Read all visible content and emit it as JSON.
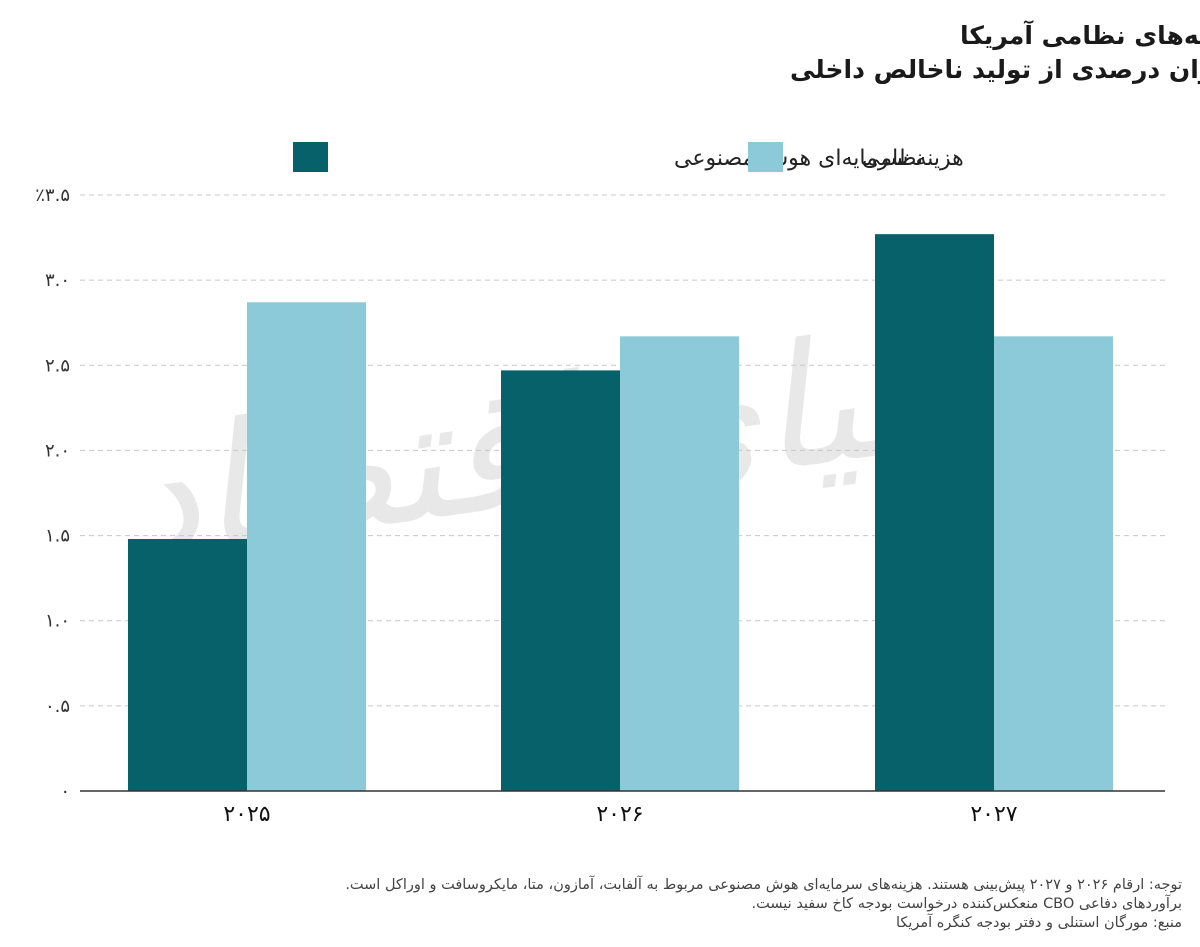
{
  "colors": {
    "ai": "#06616a",
    "military": "#8ccad9",
    "grid": "#c8c8c8",
    "axis": "#333333"
  },
  "chart_data": {
    "type": "bar",
    "title": "هزینه‌های سرمایه‌ای هوش مصنوعی در برابر هزینه‌های نظامی آمریکا",
    "subtitle": "به‌عنوان درصدی از تولید ناخالص داخلی",
    "categories": [
      "۲۰۲۵",
      "۲۰۲۶",
      "۲۰۲۷"
    ],
    "series": [
      {
        "name": "هزینه سرمایه‌ای هوش مصنوعی",
        "color": "#06616a",
        "values": [
          1.48,
          2.47,
          3.27
        ]
      },
      {
        "name": "نظامی",
        "color": "#8ccad9",
        "values": [
          2.87,
          2.67,
          2.67
        ]
      }
    ],
    "ylim": [
      0,
      3.5
    ],
    "yticks": [
      0,
      0.5,
      1.0,
      1.5,
      2.0,
      2.5,
      3.0,
      3.5
    ],
    "ytick_labels": [
      "۰",
      "۰.۵",
      "۱.۰",
      "۱.۵",
      "۲.۰",
      "۲.۵",
      "۳.۰",
      "٪۳.۵"
    ],
    "grid": "horizontal-dashed",
    "legend_position": "top"
  },
  "watermark_text": "دنیای اقتصاد",
  "notes": [
    "توجه: ارقام ۲۰۲۶ و ۲۰۲۷ پیش‌بینی هستند. هزینه‌های سرمایه‌ای هوش مصنوعی مربوط به آلفابت، آمازون، متا، مایکروسافت و اوراکل است.",
    "برآوردهای دفاعی CBO منعکس‌کننده درخواست بودجه کاخ سفید نیست.",
    "منبع: مورگان استنلی و دفتر بودجه کنگره آمریکا"
  ]
}
